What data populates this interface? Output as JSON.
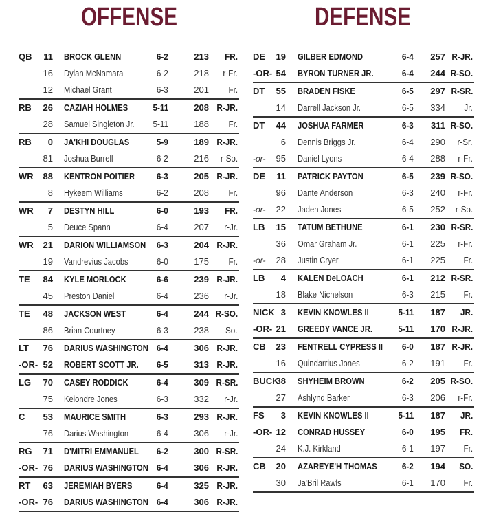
{
  "offense": {
    "title": "OFFENSE",
    "groups": [
      [
        [
          "QB",
          "11",
          "BROCK GLENN",
          "6-2",
          "213",
          "FR."
        ],
        [
          "",
          "16",
          "Dylan McNamara",
          "6-2",
          "218",
          "r-Fr."
        ],
        [
          "",
          "12",
          "Michael Grant",
          "6-3",
          "201",
          "Fr."
        ]
      ],
      [
        [
          "RB",
          "26",
          "CAZIAH HOLMES",
          "5-11",
          "208",
          "R-JR."
        ],
        [
          "",
          "28",
          "Samuel Singleton Jr.",
          "5-11",
          "188",
          "Fr."
        ]
      ],
      [
        [
          "RB",
          "0",
          "JA'KHI DOUGLAS",
          "5-9",
          "189",
          "R-JR."
        ],
        [
          "",
          "81",
          "Joshua Burrell",
          "6-2",
          "216",
          "r-So."
        ]
      ],
      [
        [
          "WR",
          "88",
          "KENTRON POITIER",
          "6-3",
          "205",
          "R-JR."
        ],
        [
          "",
          "8",
          "Hykeem Williams",
          "6-2",
          "208",
          "Fr."
        ]
      ],
      [
        [
          "WR",
          "7",
          "DESTYN HILL",
          "6-0",
          "193",
          "FR."
        ],
        [
          "",
          "5",
          "Deuce Spann",
          "6-4",
          "207",
          "r-Jr."
        ]
      ],
      [
        [
          "WR",
          "21",
          "DARION WILLIAMSON",
          "6-3",
          "204",
          "R-JR."
        ],
        [
          "",
          "19",
          "Vandrevius Jacobs",
          "6-0",
          "175",
          "Fr."
        ]
      ],
      [
        [
          "TE",
          "84",
          "KYLE MORLOCK",
          "6-6",
          "239",
          "R-JR."
        ],
        [
          "",
          "45",
          "Preston Daniel",
          "6-4",
          "236",
          "r-Jr."
        ]
      ],
      [
        [
          "TE",
          "48",
          "JACKSON WEST",
          "6-4",
          "244",
          "R-SO."
        ],
        [
          "",
          "86",
          "Brian Courtney",
          "6-3",
          "238",
          "So."
        ]
      ],
      [
        [
          "LT",
          "76",
          "DARIUS WASHINGTON",
          "6-4",
          "306",
          "R-JR."
        ],
        [
          "-OR-",
          "52",
          "ROBERT SCOTT JR.",
          "6-5",
          "313",
          "R-JR."
        ]
      ],
      [
        [
          "LG",
          "70",
          "CASEY RODDICK",
          "6-4",
          "309",
          "R-SR."
        ],
        [
          "",
          "75",
          "Keiondre Jones",
          "6-3",
          "332",
          "r-Jr."
        ]
      ],
      [
        [
          "C",
          "53",
          "MAURICE SMITH",
          "6-3",
          "293",
          "R-JR."
        ],
        [
          "",
          "76",
          "Darius Washington",
          "6-4",
          "306",
          "r-Jr."
        ]
      ],
      [
        [
          "RG",
          "71",
          "D'MITRI EMMANUEL",
          "6-2",
          "300",
          "R-SR."
        ],
        [
          "-OR-",
          "76",
          "DARIUS WASHINGTON",
          "6-4",
          "306",
          "R-JR."
        ]
      ],
      [
        [
          "RT",
          "63",
          "JEREMIAH BYERS",
          "6-4",
          "325",
          "R-JR."
        ],
        [
          "-OR-",
          "76",
          "DARIUS WASHINGTON",
          "6-4",
          "306",
          "R-JR."
        ]
      ]
    ]
  },
  "defense": {
    "title": "DEFENSE",
    "groups": [
      [
        [
          "DE",
          "19",
          "GILBER EDMOND",
          "6-4",
          "257",
          "R-JR."
        ],
        [
          "-OR-",
          "54",
          "BYRON TURNER JR.",
          "6-4",
          "244",
          "R-SO."
        ]
      ],
      [
        [
          "DT",
          "55",
          "BRADEN FISKE",
          "6-5",
          "297",
          "R-SR."
        ],
        [
          "",
          "14",
          "Darrell Jackson Jr.",
          "6-5",
          "334",
          "Jr."
        ]
      ],
      [
        [
          "DT",
          "44",
          "JOSHUA FARMER",
          "6-3",
          "311",
          "R-SO."
        ],
        [
          "",
          "6",
          "Dennis Briggs Jr.",
          "6-4",
          "290",
          "r-Sr."
        ],
        [
          "-or-",
          "95",
          "Daniel Lyons",
          "6-4",
          "288",
          "r-Fr."
        ]
      ],
      [
        [
          "DE",
          "11",
          "PATRICK PAYTON",
          "6-5",
          "239",
          "R-SO."
        ],
        [
          "",
          "96",
          "Dante Anderson",
          "6-3",
          "240",
          "r-Fr."
        ],
        [
          "-or-",
          "22",
          "Jaden Jones",
          "6-5",
          "252",
          "r-So."
        ]
      ],
      [
        [
          "LB",
          "15",
          "TATUM BETHUNE",
          "6-1",
          "230",
          "R-SR."
        ],
        [
          "",
          "36",
          "Omar Graham Jr.",
          "6-1",
          "225",
          "r-Fr."
        ],
        [
          "-or-",
          "28",
          "Justin Cryer",
          "6-1",
          "225",
          "Fr."
        ]
      ],
      [
        [
          "LB",
          "4",
          "KALEN DeLOACH",
          "6-1",
          "212",
          "R-SR."
        ],
        [
          "",
          "18",
          "Blake Nichelson",
          "6-3",
          "215",
          "Fr."
        ]
      ],
      [
        [
          "NICK",
          "3",
          "KEVIN KNOWLES II",
          "5-11",
          "187",
          "JR."
        ],
        [
          "-OR-",
          "21",
          "GREEDY VANCE JR.",
          "5-11",
          "170",
          "R-JR."
        ]
      ],
      [
        [
          "CB",
          "23",
          "FENTRELL CYPRESS II",
          "6-0",
          "187",
          "R-JR."
        ],
        [
          "",
          "16",
          "Quindarrius Jones",
          "6-2",
          "191",
          "Fr."
        ]
      ],
      [
        [
          "BUCK",
          "38",
          "SHYHEIM BROWN",
          "6-2",
          "205",
          "R-SO."
        ],
        [
          "",
          "27",
          "Ashlynd Barker",
          "6-3",
          "206",
          "r-Fr."
        ]
      ],
      [
        [
          "FS",
          "3",
          "KEVIN KNOWLES II",
          "5-11",
          "187",
          "JR."
        ],
        [
          "-OR-",
          "12",
          "CONRAD HUSSEY",
          "6-0",
          "195",
          "FR."
        ],
        [
          "",
          "24",
          "K.J. Kirkland",
          "6-1",
          "197",
          "Fr."
        ]
      ],
      [
        [
          "CB",
          "20",
          "AZAREYE'H THOMAS",
          "6-2",
          "194",
          "SO."
        ],
        [
          "",
          "30",
          "Ja'Bril Rawls",
          "6-1",
          "170",
          "Fr."
        ]
      ]
    ]
  }
}
